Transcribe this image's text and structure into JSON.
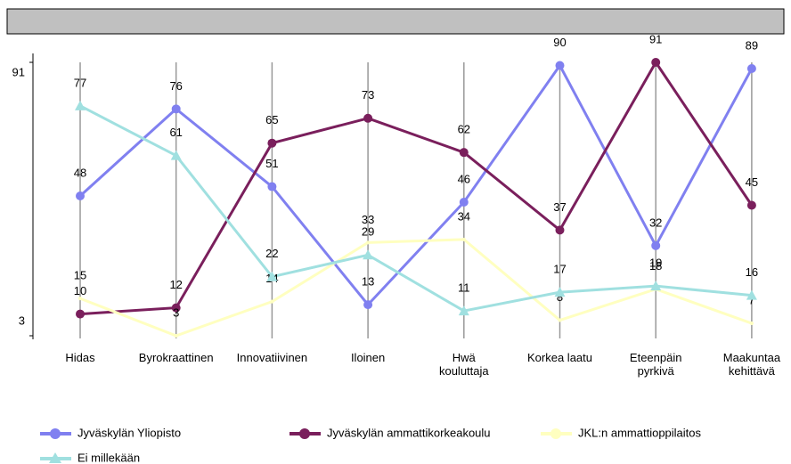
{
  "chart_data": {
    "type": "line",
    "categories": [
      "Hidas",
      "Byrokraattinen",
      "Innovatiivinen",
      "Iloinen",
      "Hwä\nkouluttaja",
      "Korkea laatu",
      "Eteenpäin\npyrkivä",
      "Maakuntaa\nkehittävä"
    ],
    "series": [
      {
        "name": "Jyväskylän Yliopisto",
        "color": "#8080f0",
        "marker": "circle",
        "values": [
          48,
          76,
          51,
          13,
          46,
          90,
          32,
          89
        ]
      },
      {
        "name": "Jyväskylän ammattikorkeakoulu",
        "color": "#7a1f5c",
        "marker": "circle",
        "values": [
          10,
          12,
          65,
          73,
          62,
          37,
          91,
          45
        ]
      },
      {
        "name": "JKL:n ammattioppilaitos",
        "color": "#ffffc0",
        "marker": "none",
        "values": [
          15,
          3,
          14,
          33,
          34,
          8,
          18,
          7
        ]
      },
      {
        "name": "Ei millekään",
        "color": "#a0e0e0",
        "marker": "triangle",
        "values": [
          77,
          61,
          22,
          29,
          11,
          17,
          19,
          16
        ]
      }
    ],
    "ylim": [
      3,
      91
    ],
    "yticks": [
      3,
      91
    ]
  }
}
